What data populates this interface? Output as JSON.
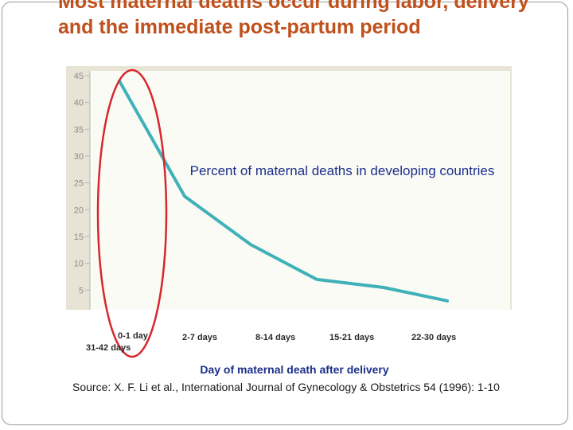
{
  "slide": {
    "title": "Most maternal deaths occur during labor, delivery and the immediate post-partum period",
    "source": "Source: X. F. Li et al., International Journal of Gynecology & Obstetrics 54 (1996): 1-10"
  },
  "chart_data": {
    "type": "line",
    "categories": [
      "0-1 day",
      "2-7 days",
      "8-14 days",
      "15-21 days",
      "22-30 days",
      "31-42 days"
    ],
    "values": [
      44,
      22.5,
      13.5,
      7,
      5.5,
      3
    ],
    "title": "",
    "annotation": "Percent of maternal deaths in developing countries",
    "xlabel": "Day of maternal death after delivery",
    "ylabel": "",
    "ylim": [
      0,
      45
    ],
    "yticks": [
      5,
      10,
      15,
      20,
      25,
      30,
      35,
      40,
      45
    ],
    "grid": false,
    "highlight": {
      "category": "0-1 day",
      "shape": "ellipse",
      "color": "#d8262c"
    },
    "colors": {
      "line": "#3fb1b8",
      "title": "#c0501c",
      "label": "#1c2f8a"
    }
  }
}
